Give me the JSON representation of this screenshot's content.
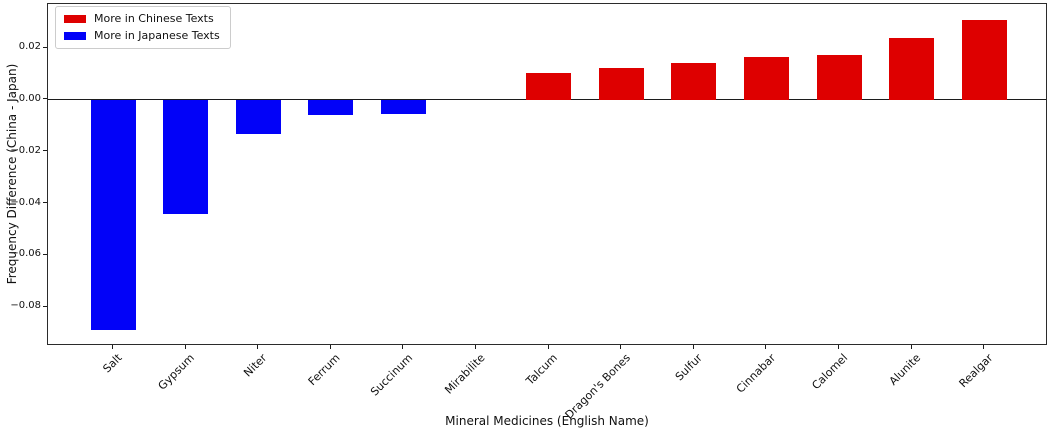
{
  "chart_data": {
    "type": "bar",
    "title": "",
    "xlabel": "Mineral Medicines (English Name)",
    "ylabel": "Frequency Difference (China - Japan)",
    "categories": [
      "Salt",
      "Gypsum",
      "Niter",
      "Ferrum",
      "Succinum",
      "Mirabilite",
      "Talcum",
      "Dragon's Bones",
      "Sulfur",
      "Cinnabar",
      "Calomel",
      "Alunite",
      "Realgar"
    ],
    "values": [
      -0.089,
      -0.044,
      -0.013,
      -0.006,
      -0.0056,
      0.0,
      0.0102,
      0.0122,
      0.0143,
      0.0165,
      0.0172,
      0.0237,
      0.031
    ],
    "colors": {
      "positive": "#de0000",
      "negative": "#0202f8"
    },
    "legend": [
      {
        "label": "More in Chinese Texts",
        "color": "#de0000"
      },
      {
        "label": "More in Japanese Texts",
        "color": "#0202f8"
      }
    ],
    "legend_position": "upper left",
    "yticks": [
      0.02,
      0.0,
      -0.02,
      -0.04,
      -0.06,
      -0.08
    ],
    "ytick_labels": [
      "0.02",
      "0.00",
      "−0.02",
      "−0.04",
      "−0.06",
      "−0.08"
    ],
    "ylim": [
      -0.095,
      0.037
    ],
    "grid": false,
    "zero_line": true
  }
}
